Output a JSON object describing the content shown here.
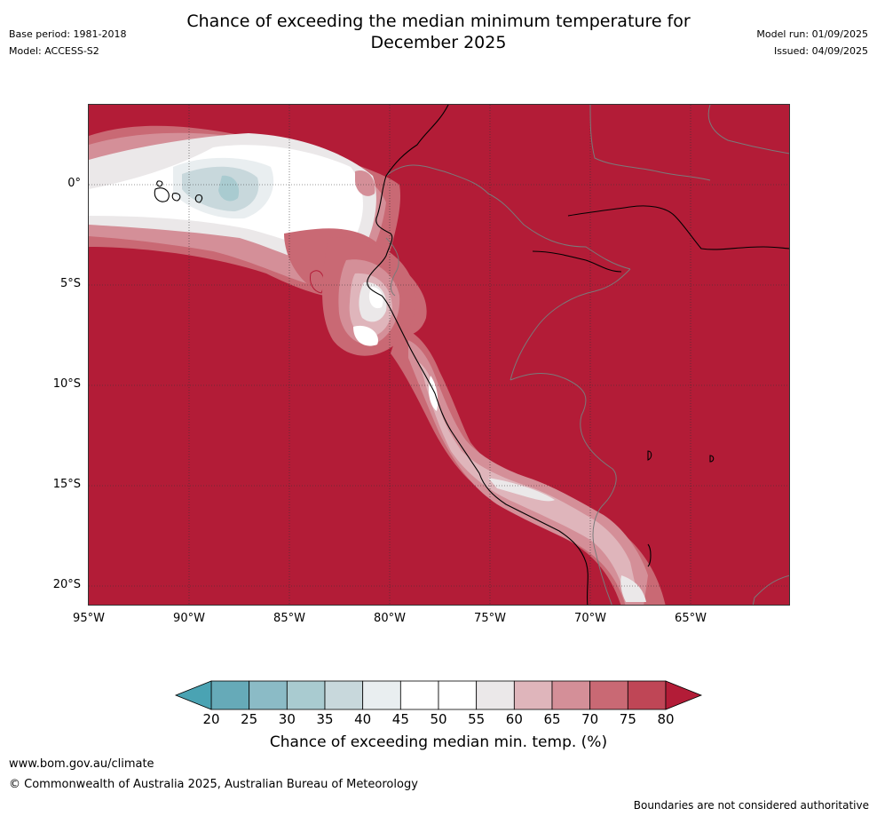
{
  "title_line1": "Chance of exceeding the median minimum temperature for",
  "title_line2": "December 2025",
  "meta_left": {
    "base_period": "Base period: 1981-2018",
    "model": "Model: ACCESS-S2"
  },
  "meta_right": {
    "model_run": "Model run: 01/09/2025",
    "issued": "Issued: 04/09/2025"
  },
  "latitude_labels": [
    "0°",
    "5°S",
    "10°S",
    "15°S",
    "20°S"
  ],
  "longitude_labels": [
    "95°W",
    "90°W",
    "85°W",
    "80°W",
    "75°W",
    "70°W",
    "65°W"
  ],
  "colorbar": {
    "ticks": [
      "20",
      "25",
      "30",
      "35",
      "40",
      "45",
      "50",
      "55",
      "60",
      "65",
      "70",
      "75",
      "80"
    ],
    "colors": [
      "#66aab8",
      "#8bbbc6",
      "#a9cbd0",
      "#c8d8dc",
      "#e9eef0",
      "#ffffff",
      "#ffffff",
      "#ebe8e9",
      "#dfb5bb",
      "#d48f98",
      "#c96974",
      "#bf4656"
    ],
    "under_color": "#4aa3b3",
    "over_color": "#b31c37",
    "label": "Chance of exceeding median min. temp. (%)"
  },
  "map_colors": {
    "high": "#b31c37",
    "coast": "#000000",
    "border": "#7a7a7a",
    "grid": "#333333"
  },
  "footer": {
    "website": "www.bom.gov.au/climate",
    "copyright": "© Commonwealth of Australia 2025, Australian Bureau of Meteorology",
    "disclaimer": "Boundaries are not considered authoritative"
  }
}
